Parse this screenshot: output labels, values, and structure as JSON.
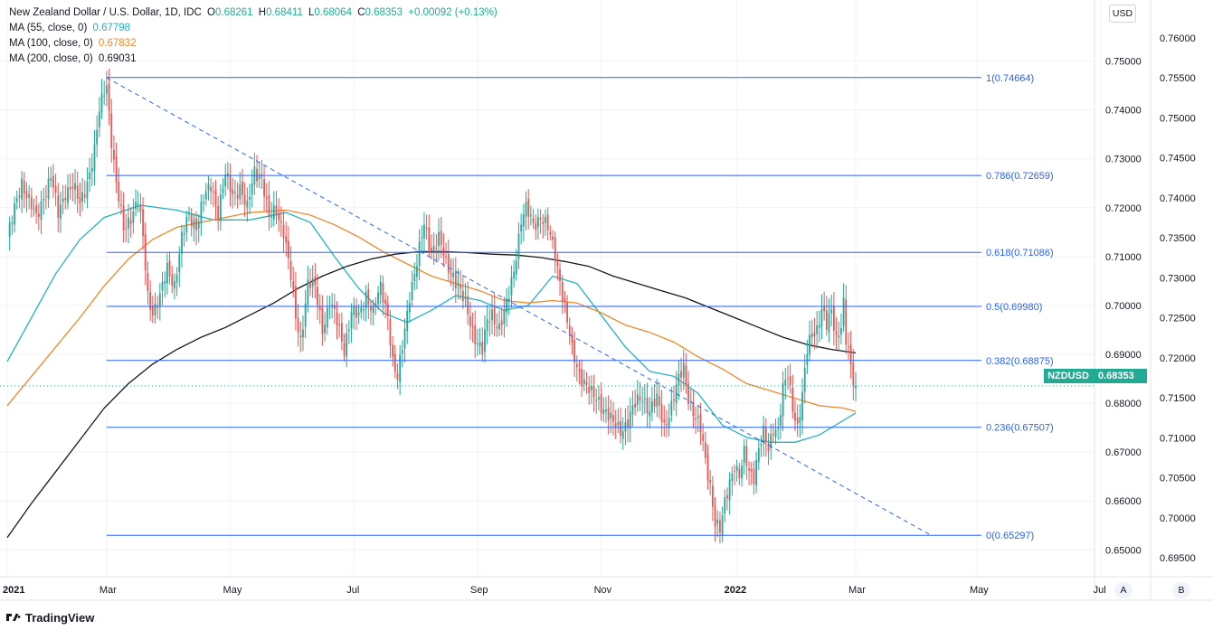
{
  "legend": {
    "title": "New Zealand Dollar / U.S. Dollar, 1D, IDC",
    "o_label": "O",
    "o_value": "0.68261",
    "h_label": "H",
    "h_value": "0.68411",
    "l_label": "L",
    "l_value": "0.68064",
    "c_label": "C",
    "c_value": "0.68353",
    "change": "+0.00092 (+0.13%)",
    "ma": [
      {
        "label": "MA (55, close, 0)",
        "value": "0.67798",
        "color": "#22b3c3"
      },
      {
        "label": "MA (100, close, 0)",
        "value": "0.67832",
        "color": "#f0882a"
      },
      {
        "label": "MA (200, close, 0)",
        "value": "0.69031",
        "color": "#131722"
      }
    ]
  },
  "currency_button": "USD",
  "scale_buttons": {
    "a": "A",
    "b": "B"
  },
  "price_tag": {
    "symbol": "NZDUSD",
    "value": "0.68353",
    "color": "#22ab94"
  },
  "branding": "TradingView",
  "chart_data": {
    "type": "candlestick",
    "symbol": "NZDUSD",
    "interval": "1D",
    "x_ticks": [
      "2021",
      "Mar",
      "May",
      "Jul",
      "Sep",
      "Nov",
      "2022",
      "Mar",
      "May",
      "Jul"
    ],
    "x_ticks_bold": [
      "2021",
      "2022"
    ],
    "y_ticks_left": [
      "0.75000",
      "0.74000",
      "0.73000",
      "0.72000",
      "0.71000",
      "0.70000",
      "0.69000",
      "0.68000",
      "0.67000",
      "0.66000",
      "0.65000"
    ],
    "y_ticks_right": [
      "0.76000",
      "0.75500",
      "0.75000",
      "0.74500",
      "0.74000",
      "0.73500",
      "0.73000",
      "0.72500",
      "0.72000",
      "0.71500",
      "0.71000",
      "0.70500",
      "0.70000",
      "0.69500"
    ],
    "y_range": [
      0.6445,
      0.7625
    ],
    "up_color": "#26a69a",
    "down_color": "#ef5350",
    "close_path": [
      [
        0,
        0.7135
      ],
      [
        3,
        0.7195
      ],
      [
        6,
        0.7255
      ],
      [
        9,
        0.7215
      ],
      [
        12,
        0.7175
      ],
      [
        15,
        0.7225
      ],
      [
        18,
        0.7265
      ],
      [
        21,
        0.7185
      ],
      [
        24,
        0.7235
      ],
      [
        27,
        0.7245
      ],
      [
        30,
        0.7205
      ],
      [
        33,
        0.7255
      ],
      [
        36,
        0.7315
      ],
      [
        38,
        0.7395
      ],
      [
        40,
        0.744
      ],
      [
        41,
        0.7455
      ],
      [
        43,
        0.734
      ],
      [
        45,
        0.7245
      ],
      [
        48,
        0.7155
      ],
      [
        51,
        0.7185
      ],
      [
        54,
        0.7215
      ],
      [
        56,
        0.7135
      ],
      [
        58,
        0.702
      ],
      [
        60,
        0.699
      ],
      [
        63,
        0.7015
      ],
      [
        66,
        0.7075
      ],
      [
        69,
        0.7045
      ],
      [
        72,
        0.7135
      ],
      [
        75,
        0.7185
      ],
      [
        78,
        0.7165
      ],
      [
        81,
        0.7215
      ],
      [
        84,
        0.7245
      ],
      [
        87,
        0.7195
      ],
      [
        90,
        0.7265
      ],
      [
        93,
        0.7225
      ],
      [
        96,
        0.7245
      ],
      [
        99,
        0.7195
      ],
      [
        102,
        0.7275
      ],
      [
        105,
        0.7265
      ],
      [
        108,
        0.7175
      ],
      [
        111,
        0.7195
      ],
      [
        114,
        0.7155
      ],
      [
        117,
        0.7055
      ],
      [
        119,
        0.6975
      ],
      [
        121,
        0.693
      ],
      [
        124,
        0.7045
      ],
      [
        127,
        0.7035
      ],
      [
        130,
        0.6955
      ],
      [
        133,
        0.7005
      ],
      [
        136,
        0.6965
      ],
      [
        139,
        0.6915
      ],
      [
        142,
        0.6985
      ],
      [
        145,
        0.6975
      ],
      [
        148,
        0.7025
      ],
      [
        151,
        0.6985
      ],
      [
        154,
        0.7035
      ],
      [
        157,
        0.6985
      ],
      [
        159,
        0.6885
      ],
      [
        161,
        0.6845
      ],
      [
        163,
        0.6915
      ],
      [
        166,
        0.7025
      ],
      [
        169,
        0.7085
      ],
      [
        172,
        0.7165
      ],
      [
        175,
        0.7115
      ],
      [
        178,
        0.7135
      ],
      [
        181,
        0.7085
      ],
      [
        184,
        0.7065
      ],
      [
        187,
        0.7025
      ],
      [
        190,
        0.6985
      ],
      [
        192,
        0.695
      ],
      [
        194,
        0.6925
      ],
      [
        196,
        0.6905
      ],
      [
        198,
        0.6965
      ],
      [
        200,
        0.6985
      ],
      [
        203,
        0.6955
      ],
      [
        206,
        0.6995
      ],
      [
        209,
        0.7075
      ],
      [
        212,
        0.7175
      ],
      [
        214,
        0.7195
      ],
      [
        217,
        0.7165
      ],
      [
        220,
        0.7185
      ],
      [
        223,
        0.7155
      ],
      [
        226,
        0.7105
      ],
      [
        228,
        0.7055
      ],
      [
        230,
        0.6995
      ],
      [
        233,
        0.6905
      ],
      [
        235,
        0.6875
      ],
      [
        238,
        0.6845
      ],
      [
        241,
        0.6815
      ],
      [
        244,
        0.6805
      ],
      [
        247,
        0.6785
      ],
      [
        250,
        0.6755
      ],
      [
        253,
        0.6745
      ],
      [
        256,
        0.6765
      ],
      [
        259,
        0.6795
      ],
      [
        262,
        0.6815
      ],
      [
        265,
        0.6785
      ],
      [
        268,
        0.6805
      ],
      [
        271,
        0.6755
      ],
      [
        274,
        0.6795
      ],
      [
        277,
        0.6845
      ],
      [
        279,
        0.6875
      ],
      [
        281,
        0.6815
      ],
      [
        284,
        0.6765
      ],
      [
        286,
        0.6745
      ],
      [
        288,
        0.6685
      ],
      [
        290,
        0.6635
      ],
      [
        292,
        0.6555
      ],
      [
        294,
        0.6535
      ],
      [
        296,
        0.6595
      ],
      [
        298,
        0.6645
      ],
      [
        300,
        0.6675
      ],
      [
        302,
        0.6645
      ],
      [
        304,
        0.6695
      ],
      [
        306,
        0.6665
      ],
      [
        308,
        0.6655
      ],
      [
        310,
        0.6705
      ],
      [
        312,
        0.6735
      ],
      [
        314,
        0.6705
      ],
      [
        316,
        0.6755
      ],
      [
        318,
        0.6745
      ],
      [
        320,
        0.6825
      ],
      [
        322,
        0.6855
      ],
      [
        324,
        0.6795
      ],
      [
        326,
        0.6755
      ],
      [
        328,
        0.6815
      ],
      [
        330,
        0.6905
      ],
      [
        332,
        0.6945
      ],
      [
        334,
        0.6955
      ],
      [
        336,
        0.6995
      ],
      [
        338,
        0.6955
      ],
      [
        340,
        0.6985
      ],
      [
        342,
        0.6935
      ],
      [
        344,
        0.6965
      ],
      [
        345,
        0.7005
      ],
      [
        346,
        0.6925
      ],
      [
        347,
        0.6905
      ],
      [
        348,
        0.6865
      ],
      [
        349,
        0.6845
      ],
      [
        350,
        0.6835
      ]
    ],
    "moving_averages": [
      {
        "name": "MA (55, close, 0)",
        "color": "#22b3c3",
        "path": [
          [
            0,
            0.6885
          ],
          [
            10,
            0.6975
          ],
          [
            20,
            0.7065
          ],
          [
            30,
            0.7135
          ],
          [
            40,
            0.718
          ],
          [
            55,
            0.7205
          ],
          [
            70,
            0.7195
          ],
          [
            85,
            0.7175
          ],
          [
            100,
            0.7175
          ],
          [
            115,
            0.719
          ],
          [
            125,
            0.717
          ],
          [
            135,
            0.71
          ],
          [
            145,
            0.7035
          ],
          [
            155,
            0.6985
          ],
          [
            165,
            0.6965
          ],
          [
            175,
            0.699
          ],
          [
            185,
            0.702
          ],
          [
            195,
            0.701
          ],
          [
            205,
            0.699
          ],
          [
            215,
            0.7
          ],
          [
            225,
            0.706
          ],
          [
            235,
            0.7045
          ],
          [
            245,
            0.698
          ],
          [
            255,
            0.6915
          ],
          [
            265,
            0.6865
          ],
          [
            275,
            0.6855
          ],
          [
            285,
            0.682
          ],
          [
            295,
            0.6755
          ],
          [
            305,
            0.673
          ],
          [
            315,
            0.672
          ],
          [
            325,
            0.672
          ],
          [
            335,
            0.6735
          ],
          [
            345,
            0.6765
          ],
          [
            350,
            0.678
          ]
        ]
      },
      {
        "name": "MA (100, close, 0)",
        "color": "#f0882a",
        "path": [
          [
            0,
            0.6795
          ],
          [
            10,
            0.6855
          ],
          [
            20,
            0.6915
          ],
          [
            30,
            0.6975
          ],
          [
            40,
            0.704
          ],
          [
            50,
            0.7095
          ],
          [
            60,
            0.7135
          ],
          [
            70,
            0.716
          ],
          [
            85,
            0.7175
          ],
          [
            100,
            0.719
          ],
          [
            115,
            0.7195
          ],
          [
            125,
            0.7185
          ],
          [
            135,
            0.7165
          ],
          [
            145,
            0.714
          ],
          [
            155,
            0.711
          ],
          [
            165,
            0.7085
          ],
          [
            175,
            0.706
          ],
          [
            185,
            0.7045
          ],
          [
            195,
            0.703
          ],
          [
            205,
            0.701
          ],
          [
            215,
            0.7005
          ],
          [
            225,
            0.701
          ],
          [
            235,
            0.7005
          ],
          [
            245,
            0.6985
          ],
          [
            255,
            0.696
          ],
          [
            265,
            0.6945
          ],
          [
            275,
            0.6925
          ],
          [
            285,
            0.6895
          ],
          [
            295,
            0.687
          ],
          [
            305,
            0.684
          ],
          [
            315,
            0.6825
          ],
          [
            325,
            0.681
          ],
          [
            335,
            0.6795
          ],
          [
            345,
            0.679
          ],
          [
            350,
            0.6783
          ]
        ]
      },
      {
        "name": "MA (200, close, 0)",
        "color": "#131722",
        "path": [
          [
            0,
            0.6525
          ],
          [
            10,
            0.6595
          ],
          [
            20,
            0.666
          ],
          [
            30,
            0.6725
          ],
          [
            40,
            0.679
          ],
          [
            50,
            0.684
          ],
          [
            60,
            0.688
          ],
          [
            70,
            0.691
          ],
          [
            80,
            0.6935
          ],
          [
            90,
            0.6955
          ],
          [
            100,
            0.698
          ],
          [
            110,
            0.7005
          ],
          [
            120,
            0.7035
          ],
          [
            130,
            0.706
          ],
          [
            140,
            0.708
          ],
          [
            150,
            0.7095
          ],
          [
            160,
            0.7105
          ],
          [
            170,
            0.711
          ],
          [
            180,
            0.711
          ],
          [
            190,
            0.7108
          ],
          [
            200,
            0.7105
          ],
          [
            210,
            0.7103
          ],
          [
            220,
            0.7098
          ],
          [
            230,
            0.709
          ],
          [
            240,
            0.708
          ],
          [
            250,
            0.706
          ],
          [
            260,
            0.7045
          ],
          [
            270,
            0.703
          ],
          [
            280,
            0.7015
          ],
          [
            290,
            0.6995
          ],
          [
            300,
            0.6975
          ],
          [
            310,
            0.6955
          ],
          [
            320,
            0.6935
          ],
          [
            330,
            0.692
          ],
          [
            340,
            0.691
          ],
          [
            350,
            0.6903
          ]
        ]
      }
    ],
    "fib_levels": [
      {
        "label": "1(0.74664)",
        "price": 0.74664
      },
      {
        "label": "0.786(0.72659)",
        "price": 0.72659
      },
      {
        "label": "0.618(0.71086)",
        "price": 0.71086
      },
      {
        "label": "0.5(0.69980)",
        "price": 0.6998
      },
      {
        "label": "0.382(0.68875)",
        "price": 0.68875
      },
      {
        "label": "0.236(0.67507)",
        "price": 0.67507
      },
      {
        "label": "0(0.65297)",
        "price": 0.65297
      }
    ],
    "fib_color": "#2962ff",
    "trend_line": {
      "from": [
        41,
        0.7466
      ],
      "to": [
        381,
        0.653
      ],
      "style": "dashed",
      "color": "#2962ff"
    }
  }
}
